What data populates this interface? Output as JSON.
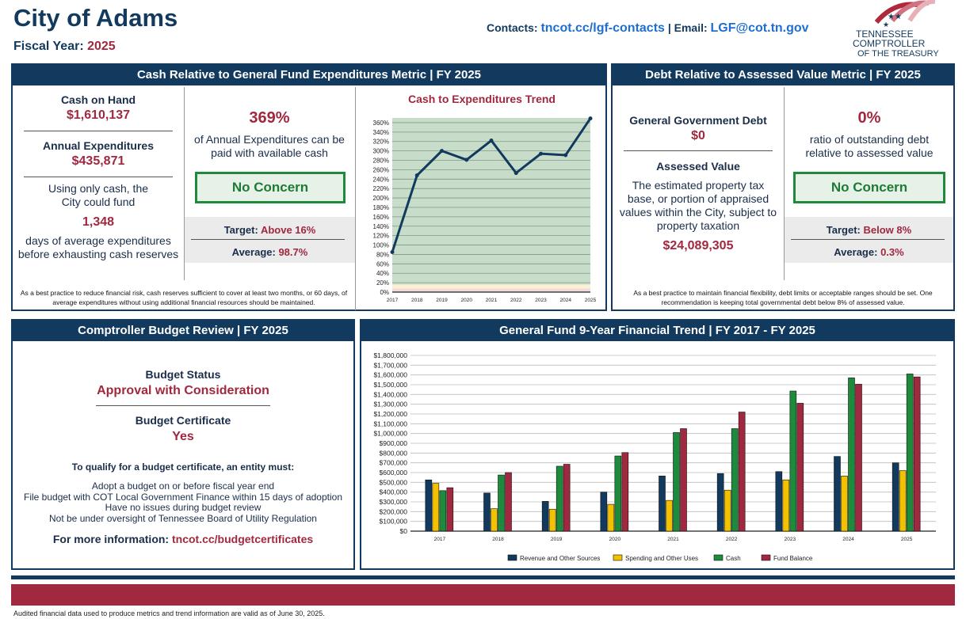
{
  "header": {
    "city": "City of Adams",
    "fiscal_label": "Fiscal Year:",
    "fiscal_year": "2025",
    "contacts_label": "Contacts:",
    "contacts_link": "tncot.cc/lgf-contacts",
    "sep": "|",
    "email_label": "Email:",
    "email": "LGF@cot.tn.gov",
    "logo_text": [
      "Tennessee",
      "Comptroller",
      "of the Treasury"
    ]
  },
  "cash_panel": {
    "title": "Cash Relative to General Fund Expenditures Metric | FY 2025",
    "cash_label": "Cash on Hand",
    "cash_value": "$1,610,137",
    "exp_label": "Annual Expenditures",
    "exp_value": "$435,871",
    "fund_text": "Using only cash, the City could fund",
    "days_value": "1,348",
    "days_text": "days of average expenditures before exhausting cash reserves",
    "pct": "369%",
    "pct_text": "of Annual Expenditures can be paid with available cash",
    "status": "No Concern",
    "target_label": "Target:",
    "target_value": "Above 16%",
    "avg_label": "Average:",
    "avg_value": "98.7%",
    "note": "As a best practice to reduce financial risk, cash reserves sufficient to cover at least two months, or 60 days, of average expenditures without using additional financial resources should be maintained."
  },
  "debt_panel": {
    "title": "Debt Relative to Assessed Value Metric | FY 2025",
    "debt_label": "General Government Debt",
    "debt_value": "$0",
    "av_label": "Assessed Value",
    "av_text": "The estimated property tax base, or portion of appraised values within the City, subject to property taxation",
    "av_value": "$24,089,305",
    "pct": "0%",
    "pct_text": "ratio of outstanding debt relative to assessed value",
    "status": "No Concern",
    "target_label": "Target:",
    "target_value": "Below 8%",
    "avg_label": "Average:",
    "avg_value": "0.3%",
    "note": "As a best practice to maintain financial flexibility, debt limits or acceptable ranges should be set. One recommendation is keeping total governmental debt below 8% of assessed value."
  },
  "budget_panel": {
    "title": "Comptroller Budget Review | FY 2025",
    "status_label": "Budget Status",
    "status_value": "Approval with Consideration",
    "cert_label": "Budget Certificate",
    "cert_value": "Yes",
    "qualify": "To qualify for a budget certificate, an entity must:",
    "reqs": [
      "Adopt a budget on or before fiscal year end",
      "File budget with COT Local Government Finance within 15 days of adoption",
      "Have no issues during budget review",
      "Not be under oversight of Tennessee Board of Utility Regulation"
    ],
    "more_label": "For more information:",
    "more_link": "tncot.cc/budgetcertificates"
  },
  "trend_panel": {
    "title": "General Fund 9-Year Financial Trend | FY 2017 - FY 2025"
  },
  "footer": {
    "note": "Audited financial data used to produce metrics and trend information are valid as of June 30, 2025."
  },
  "colors": {
    "navy": "#123a5e",
    "red": "#a0283f",
    "green": "#1e8a3c",
    "yellow": "#f2c200"
  },
  "chart_data": [
    {
      "type": "line",
      "title": "Cash to Expenditures Trend",
      "categories": [
        "2017",
        "2018",
        "2019",
        "2020",
        "2021",
        "2022",
        "2023",
        "2024",
        "2025"
      ],
      "values": [
        85,
        248,
        300,
        281,
        322,
        253,
        294,
        291,
        369
      ],
      "ylim": [
        0,
        360
      ],
      "yticks": [
        0,
        20,
        40,
        60,
        80,
        100,
        120,
        140,
        160,
        180,
        200,
        220,
        240,
        260,
        280,
        300,
        320,
        340,
        360
      ],
      "y_unit": "%",
      "grid": true,
      "background_bands": [
        {
          "from": 0,
          "to": 8,
          "color": "#f3d9d9"
        },
        {
          "from": 8,
          "to": 16,
          "color": "#fbf2d6"
        },
        {
          "from": 16,
          "to": 370,
          "color": "#c7dcc9"
        }
      ]
    },
    {
      "type": "bar",
      "categories": [
        "2017",
        "2018",
        "2019",
        "2020",
        "2021",
        "2022",
        "2023",
        "2024",
        "2025"
      ],
      "series": [
        {
          "name": "Revenue and Other Sources",
          "color": "#123a5e",
          "values": [
            525000,
            390000,
            305000,
            400000,
            565000,
            590000,
            610000,
            765000,
            700000
          ]
        },
        {
          "name": "Spending and Other Uses",
          "color": "#f2c200",
          "values": [
            490000,
            230000,
            225000,
            275000,
            315000,
            420000,
            525000,
            565000,
            620000
          ]
        },
        {
          "name": "Cash",
          "color": "#1e8a3c",
          "values": [
            415000,
            575000,
            665000,
            770000,
            1010000,
            1050000,
            1435000,
            1570000,
            1610137
          ]
        },
        {
          "name": "Fund Balance",
          "color": "#a0283f",
          "values": [
            445000,
            600000,
            685000,
            805000,
            1050000,
            1220000,
            1310000,
            1505000,
            1580000
          ]
        }
      ],
      "ylim": [
        0,
        1800000
      ],
      "ytick_step": 100000,
      "grid": true,
      "legend": "bottom"
    }
  ]
}
